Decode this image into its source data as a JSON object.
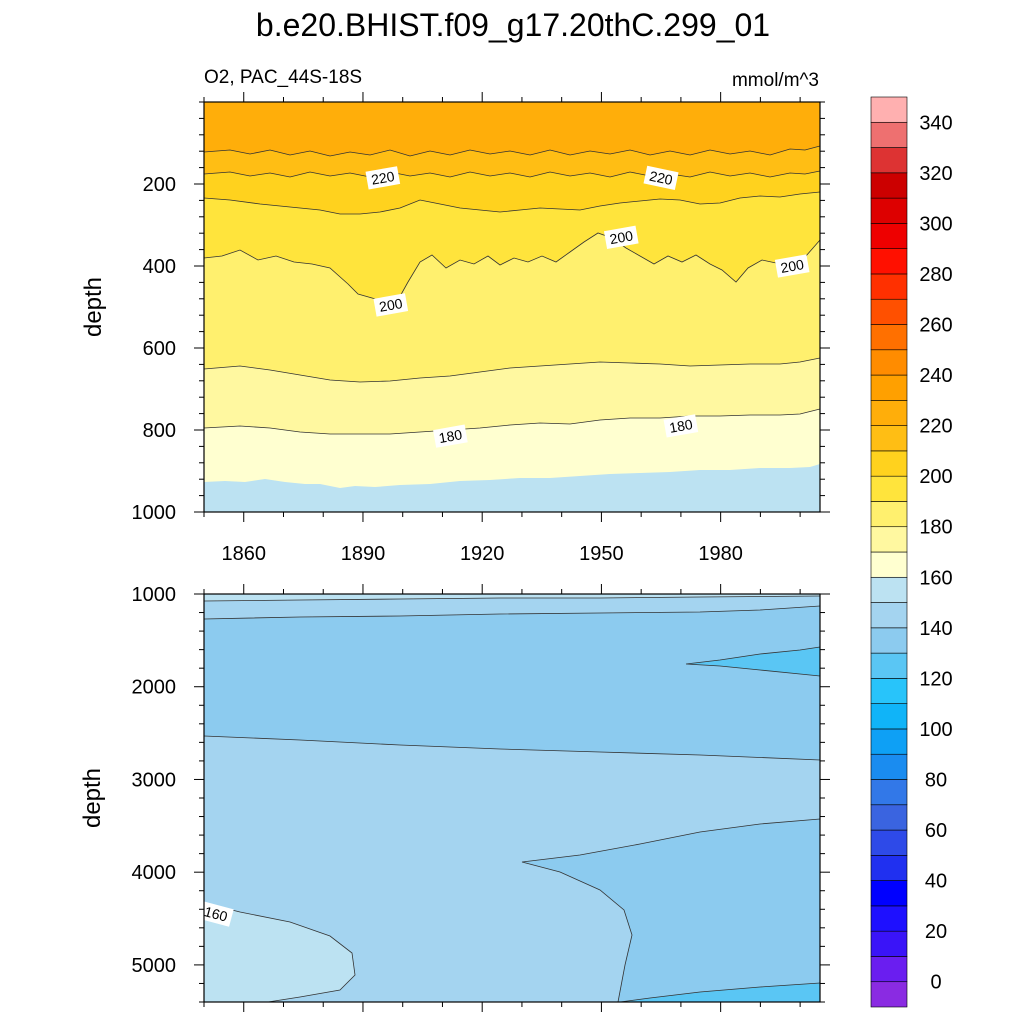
{
  "chart_data": {
    "type": "heatmap",
    "title": "b.e20.BHIST.f09_g17.20thC.299_01",
    "variable_label": "O2, PAC_44S-18S",
    "units_label": "mmol/m^3",
    "x_ticks": [
      1860,
      1890,
      1920,
      1950,
      1980
    ],
    "xlim": [
      1850,
      2005
    ],
    "upper_panel": {
      "ylabel": "depth",
      "ylim": [
        1000,
        0
      ],
      "y_ticks": [
        200,
        400,
        600,
        800,
        1000
      ],
      "contour_labels": [
        {
          "text": "220",
          "year": 1895,
          "depth": 185
        },
        {
          "text": "220",
          "year": 1965,
          "depth": 185
        },
        {
          "text": "200",
          "year": 1955,
          "depth": 330
        },
        {
          "text": "200",
          "year": 1998,
          "depth": 400
        },
        {
          "text": "200",
          "year": 1897,
          "depth": 495
        },
        {
          "text": "180",
          "year": 1912,
          "depth": 815
        },
        {
          "text": "180",
          "year": 1970,
          "depth": 790
        }
      ]
    },
    "lower_panel": {
      "ylabel": "depth",
      "ylim": [
        1000,
        5400
      ],
      "y_ticks": [
        1000,
        2000,
        3000,
        4000,
        5000
      ],
      "contour_labels": [
        {
          "text": "160",
          "year": 1853,
          "depth": 4450
        }
      ]
    },
    "colorbar": {
      "tick_labels": [
        "0",
        "20",
        "40",
        "60",
        "80",
        "100",
        "120",
        "140",
        "160",
        "180",
        "200",
        "220",
        "240",
        "260",
        "280",
        "300",
        "320",
        "340"
      ],
      "start": -10,
      "step": 10,
      "colors": [
        "#8a2be2",
        "#6a1ef0",
        "#3a14f8",
        "#1e10ff",
        "#0000ff",
        "#2030f0",
        "#2e4ae8",
        "#3a64e0",
        "#3278e8",
        "#1a8cf0",
        "#0ea0f5",
        "#10b4f8",
        "#28c4fa",
        "#5ac6f4",
        "#8ccbef",
        "#a4d4f0",
        "#bce2f2",
        "#ffffd0",
        "#fff8a0",
        "#fff06e",
        "#ffe43c",
        "#ffd21e",
        "#ffbe14",
        "#ffae0a",
        "#ffa000",
        "#ff8c00",
        "#ff7000",
        "#ff5000",
        "#ff3000",
        "#ff1000",
        "#ee0000",
        "#dd0000",
        "#cc0000",
        "#dd3333",
        "#ee7070",
        "#ffb0b0"
      ]
    }
  }
}
